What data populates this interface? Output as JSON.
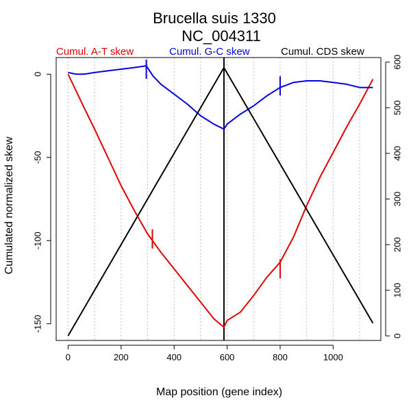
{
  "chart_data": {
    "type": "line",
    "title": "Brucella suis 1330",
    "subtitle": "NC_004311",
    "xlabel": "Map position (gene index)",
    "ylabel": "Cumulated normalized skew",
    "xlim": [
      -45,
      1180
    ],
    "ylim": [
      -160,
      10
    ],
    "y2lim": [
      -10,
      610
    ],
    "x_ticks": [
      0,
      200,
      400,
      600,
      800,
      1000
    ],
    "y_ticks": [
      0,
      -50,
      -100,
      -150
    ],
    "y2_ticks": [
      0,
      100,
      200,
      300,
      400,
      500,
      600
    ],
    "grid_x": [
      0,
      100,
      200,
      300,
      400,
      500,
      600,
      700,
      800,
      900,
      1000,
      1100
    ],
    "vertical_line_x": 588,
    "series": [
      {
        "name": "Cumul. A-T skew",
        "color": "#e00000",
        "axis": "left",
        "x": [
          0,
          30,
          60,
          100,
          150,
          200,
          250,
          300,
          350,
          400,
          450,
          500,
          550,
          588,
          600,
          650,
          700,
          750,
          800,
          850,
          900,
          950,
          1000,
          1050,
          1100,
          1150
        ],
        "y": [
          0,
          -10,
          -20,
          -33,
          -50,
          -67,
          -82,
          -96,
          -107,
          -117,
          -127,
          -137,
          -147,
          -152,
          -148,
          -143,
          -133,
          -122,
          -113,
          -98,
          -79,
          -62,
          -47,
          -32,
          -18,
          -3
        ],
        "markers": [
          {
            "x": 318,
            "y": -99
          },
          {
            "x": 800,
            "y": -117
          }
        ]
      },
      {
        "name": "Cumul. G-C skew",
        "color": "#0000e0",
        "axis": "left",
        "x": [
          0,
          30,
          60,
          100,
          150,
          200,
          250,
          295,
          320,
          350,
          400,
          450,
          500,
          550,
          588,
          600,
          650,
          700,
          750,
          800,
          850,
          900,
          950,
          1000,
          1050,
          1100,
          1150
        ],
        "y": [
          1,
          0,
          0,
          1,
          2,
          3,
          4,
          5,
          -1,
          -6,
          -12,
          -18,
          -25,
          -30,
          -33,
          -30,
          -24,
          -19,
          -13,
          -8,
          -5,
          -4,
          -4,
          -5,
          -6,
          -8,
          -8
        ],
        "markers": [
          {
            "x": 295,
            "y": 3
          },
          {
            "x": 800,
            "y": -7
          }
        ]
      },
      {
        "name": "Cumul. CDS skew",
        "color": "#000000",
        "axis": "right",
        "x": [
          0,
          588,
          1150
        ],
        "y": [
          0,
          588,
          28
        ],
        "markers": []
      }
    ],
    "legend_position": "top"
  }
}
